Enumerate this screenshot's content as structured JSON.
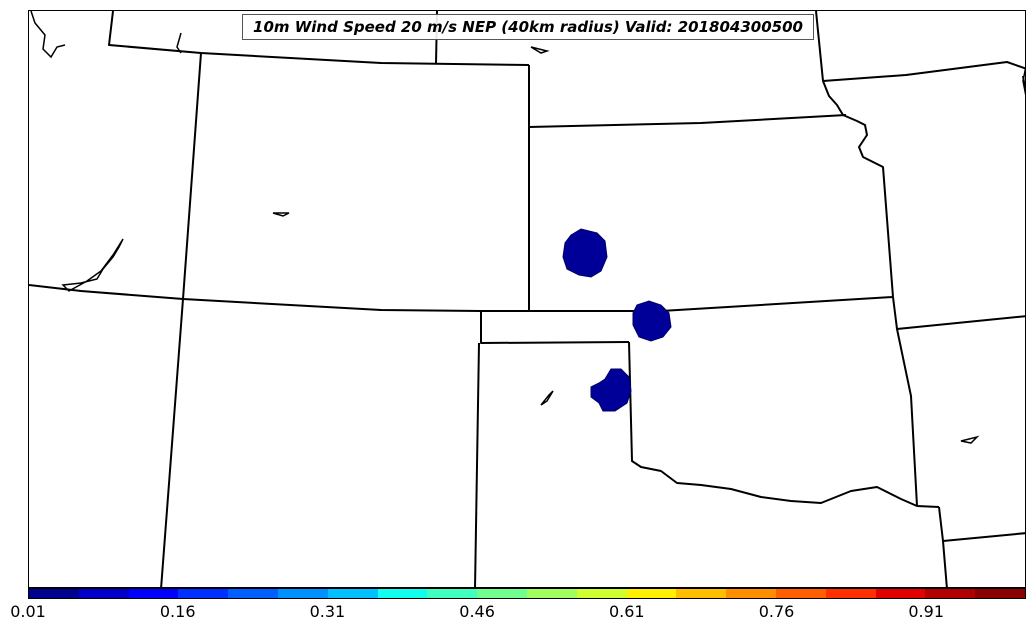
{
  "title": "10m Wind Speed 20 m/s NEP (40km radius) Valid: 201804300500",
  "colorbar": {
    "colors": [
      "#00008f",
      "#0000c8",
      "#0000ff",
      "#0030ff",
      "#0060ff",
      "#0090ff",
      "#00c0ff",
      "#10ffef",
      "#40ffbf",
      "#70ff8f",
      "#a0ff5f",
      "#cfff30",
      "#ffef00",
      "#ffbf00",
      "#ff8f00",
      "#ff5f00",
      "#ff3000",
      "#e30000",
      "#b00000",
      "#8a0000"
    ],
    "ticks": [
      "0.01",
      "0.16",
      "0.31",
      "0.46",
      "0.61",
      "0.76",
      "0.91"
    ]
  },
  "map": {
    "features": [
      "state-borders",
      "coastline-lakes"
    ],
    "blob_color": "#000099",
    "probability_areas": 3
  }
}
